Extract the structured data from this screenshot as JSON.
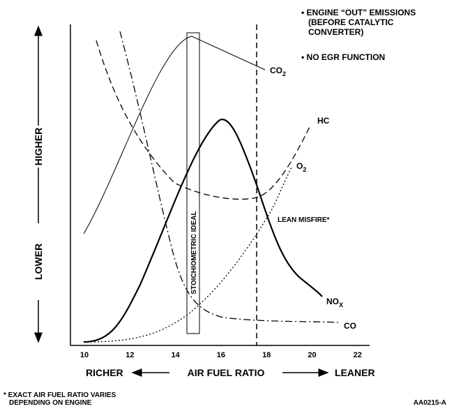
{
  "notes": [
    "• ENGINE “OUT” EMISSIONS",
    "(BEFORE CATALYTIC",
    "CONVERTER)",
    "• NO EGR FUNCTION"
  ],
  "y_axis": {
    "high": "HIGHER",
    "low": "LOWER"
  },
  "x_axis": {
    "ticks": [
      "10",
      "12",
      "14",
      "16",
      "18",
      "20",
      "22"
    ],
    "left": "RICHER",
    "title": "AIR FUEL RATIO",
    "right": "LEANER"
  },
  "curves": {
    "co2": {
      "text": "CO",
      "sub": "2"
    },
    "hc": {
      "text": "HC"
    },
    "o2": {
      "text": "O",
      "sub": "2"
    },
    "nox": {
      "text": "NO",
      "sub": "X"
    },
    "co": {
      "text": "CO"
    }
  },
  "stoichiometric": "STOICHIOMETRIC IDEAL",
  "lean_misfire": "LEAN MISFIRE*",
  "footnote": [
    "* EXACT AIR FUEL RATIO VARIES",
    "DEPENDING ON ENGINE"
  ],
  "figure_id": "AA0215-A"
}
